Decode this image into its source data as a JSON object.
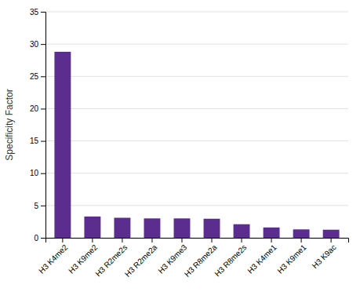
{
  "chart_data": {
    "type": "bar",
    "categories": [
      "H3 K4me2",
      "H3 K9me2",
      "H3 R2me2s",
      "H3 R2me2a",
      "H3 K9me3",
      "H3 R8me2a",
      "H3 R8me2s",
      "H3 K4me1",
      "H3 K9me1",
      "H3 K9ac"
    ],
    "values": [
      28.8,
      3.3,
      3.1,
      3.0,
      3.0,
      2.95,
      2.1,
      1.6,
      1.3,
      1.25
    ],
    "color": "#5b2d8e",
    "ylabel": "Specificity Factor",
    "ylim": [
      0,
      35
    ],
    "yticks": [
      0,
      5,
      10,
      15,
      20,
      25,
      30,
      35
    ],
    "grid": true
  }
}
